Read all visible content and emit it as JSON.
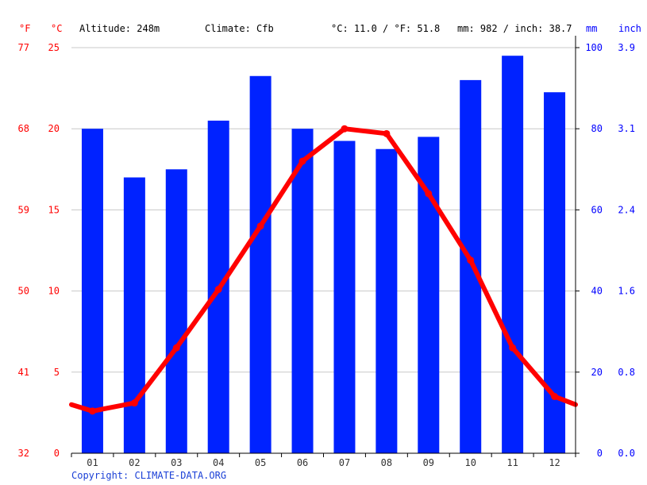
{
  "header": {
    "altitude": "Altitude: 248m",
    "climate": "Climate: Cfb",
    "temp_avg": "°C: 11.0 / °F: 51.8",
    "precip_total": "mm: 982 / inch: 38.7"
  },
  "copyright": "Copyright: CLIMATE-DATA.ORG",
  "colors": {
    "bars": "#0022ff",
    "line": "#ff0000",
    "grid": "#c8c8c8",
    "axis_red": "#ff0000",
    "axis_blue": "#0000ff"
  },
  "chart_data": {
    "type": "bar+line",
    "categories": [
      "01",
      "02",
      "03",
      "04",
      "05",
      "06",
      "07",
      "08",
      "09",
      "10",
      "11",
      "12"
    ],
    "series": [
      {
        "values": [
          80,
          68,
          70,
          82,
          93,
          80,
          77,
          75,
          78,
          92,
          98,
          89
        ],
        "type": "bar",
        "axis": "right",
        "unit": "mm"
      },
      {
        "values": [
          2.6,
          3.1,
          6.5,
          10.1,
          14.0,
          18.0,
          20.0,
          19.7,
          16.0,
          11.9,
          6.5,
          3.5
        ],
        "type": "line",
        "axis": "left",
        "unit": "°C"
      }
    ],
    "axes": {
      "left_c": {
        "unit_label": "°C",
        "ticks": [
          "0",
          "5",
          "10",
          "15",
          "20",
          "25"
        ],
        "range": [
          0,
          25
        ]
      },
      "left_f": {
        "unit_label": "°F",
        "ticks": [
          "32",
          "41",
          "50",
          "59",
          "68",
          "77"
        ]
      },
      "right_mm": {
        "unit_label": "mm",
        "ticks": [
          "0",
          "20",
          "40",
          "60",
          "80",
          "100"
        ],
        "range": [
          0,
          100
        ]
      },
      "right_inch": {
        "unit_label": "inch",
        "ticks": [
          "0.0",
          "0.8",
          "1.6",
          "2.4",
          "3.1",
          "3.9"
        ]
      }
    },
    "grid": true
  }
}
